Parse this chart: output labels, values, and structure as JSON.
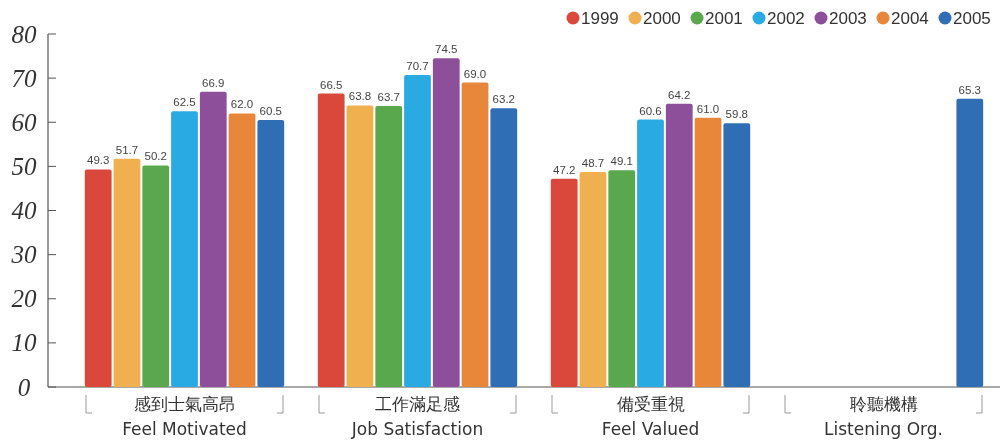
{
  "chart_data": {
    "type": "bar",
    "categories": [
      "感到士氣高昂\nFeel Motivated",
      "工作滿足感\nJob Satisfaction",
      "備受重視\nFeel Valued",
      "聆聽機構\nListening Org."
    ],
    "series": [
      {
        "name": "1999",
        "color": "#d9483b",
        "values": [
          49.3,
          66.5,
          47.2,
          null
        ]
      },
      {
        "name": "2000",
        "color": "#f0b050",
        "values": [
          51.7,
          63.8,
          48.7,
          null
        ]
      },
      {
        "name": "2001",
        "color": "#5aa84e",
        "values": [
          50.2,
          63.7,
          49.1,
          null
        ]
      },
      {
        "name": "2002",
        "color": "#29aae2",
        "values": [
          62.5,
          70.7,
          60.6,
          null
        ]
      },
      {
        "name": "2003",
        "color": "#8e4f9a",
        "values": [
          66.9,
          74.5,
          64.2,
          null
        ]
      },
      {
        "name": "2004",
        "color": "#e8873a",
        "values": [
          62.0,
          69.0,
          61.0,
          null
        ],
        "value_labels": [
          "62.0",
          "69.0",
          "61.0",
          null
        ]
      },
      {
        "name": "2005",
        "color": "#2f6db5",
        "values": [
          60.5,
          63.2,
          59.8,
          65.3
        ]
      }
    ],
    "ylim": [
      0,
      80
    ],
    "yticks": [
      0,
      10,
      20,
      30,
      40,
      50,
      60,
      70,
      80
    ],
    "data_labels": true,
    "legend": "top right",
    "grid": false
  }
}
